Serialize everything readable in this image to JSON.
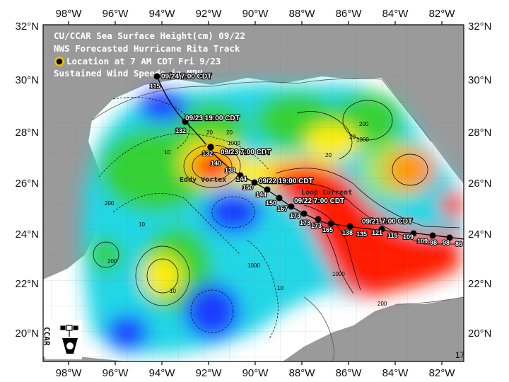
{
  "map": {
    "title_lines": [
      "CU/CCAR Sea Surface Height(cm) 09/22",
      "NWS Forecasted Hurricane Rita Track",
      "Location at 7 AM CDT Fri 9/23",
      "Sustained Wind Speeds in MPH"
    ],
    "top_ticks": [
      "98°W",
      "96°W",
      "94°W",
      "92°W",
      "90°W",
      "88°W",
      "86°W",
      "84°W",
      "82°W"
    ],
    "bottom_ticks": [
      "98°W",
      "96°W",
      "94°W",
      "92°W",
      "90°W",
      "88°W",
      "86°W",
      "84°W",
      "82°W"
    ],
    "left_ticks": [
      "32°N",
      "30°N",
      "28°N",
      "26°N",
      "24°N",
      "22°N",
      "20°N"
    ],
    "right_ticks": [
      "32°N",
      "30°N",
      "28°N",
      "26°N",
      "24°N",
      "22°N",
      "20°N"
    ],
    "track_labels": [
      "09/24 7:00 CDT",
      "09/23 19:00 CDT",
      "09/23 7:00 CDT",
      "09/22 19:00 CDT",
      "09/22 7:00 CDT",
      "09/21 7:00 CDT"
    ],
    "wind_speeds": [
      "115",
      "132",
      "132",
      "140",
      "138",
      "144",
      "150",
      "144",
      "150",
      "167",
      "173",
      "173",
      "173",
      "165",
      "138",
      "135",
      "121",
      "115",
      "109",
      "109",
      "98",
      "98",
      "86"
    ],
    "features": [
      "Eddy Vortex",
      "Loop Current"
    ],
    "contour_labels": [
      "10",
      "20",
      "10",
      "20",
      "20",
      "1000",
      "200",
      "200",
      "200",
      "1000",
      "1000",
      "10",
      "20",
      "1000",
      "200",
      "10",
      "10"
    ],
    "logo_text": "CCAR",
    "page_number": "17",
    "colors": {
      "land": "#9a9a9a",
      "water_white": "#ffffff",
      "ssh_red": "#ff1a00",
      "ssh_yellow": "#ffee00",
      "ssh_green": "#35d135",
      "ssh_cyan": "#22d6e6",
      "ssh_blue": "#1a3cff",
      "track_marker": "#000000"
    }
  }
}
